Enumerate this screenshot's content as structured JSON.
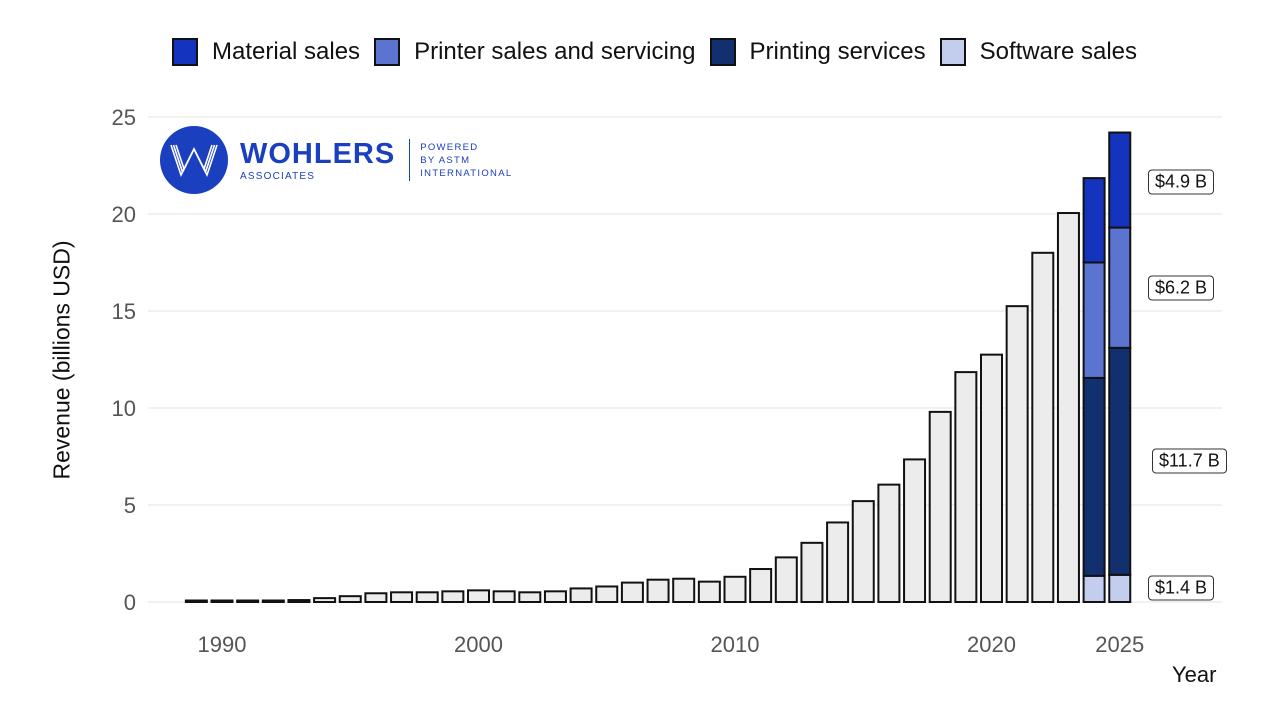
{
  "legend": {
    "items": [
      {
        "label": "Material sales",
        "color": "#1434c0"
      },
      {
        "label": "Printer sales and servicing",
        "color": "#5a74cf"
      },
      {
        "label": "Printing services",
        "color": "#12306e"
      },
      {
        "label": "Software sales",
        "color": "#c3cdee"
      }
    ]
  },
  "logo": {
    "name": "WOHLERS",
    "sub": "ASSOCIATES",
    "powered_line1": "POWERED",
    "powered_line2": "BY ASTM",
    "powered_line3": "INTERNATIONAL"
  },
  "axes": {
    "ylabel": "Revenue (billions USD)",
    "xlabel": "Year",
    "yticks": [
      "0",
      "5",
      "10",
      "15",
      "20",
      "25"
    ],
    "xticks": [
      "1990",
      "2000",
      "2010",
      "2020",
      "2025"
    ]
  },
  "value_labels": [
    {
      "text": "$4.9 B",
      "segment": "Material sales"
    },
    {
      "text": "$6.2 B",
      "segment": "Printer sales and servicing"
    },
    {
      "text": "$11.7 B",
      "segment": "Printing services"
    },
    {
      "text": "$1.4 B",
      "segment": "Software sales"
    }
  ],
  "chart_data": {
    "type": "bar",
    "title": "",
    "xlabel": "Year",
    "ylabel": "Revenue (billions USD)",
    "ylim": [
      0,
      25
    ],
    "grid": true,
    "legend_position": "top",
    "x": [
      1989,
      1990,
      1991,
      1992,
      1993,
      1994,
      1995,
      1996,
      1997,
      1998,
      1999,
      2000,
      2001,
      2002,
      2003,
      2004,
      2005,
      2006,
      2007,
      2008,
      2009,
      2010,
      2011,
      2012,
      2013,
      2014,
      2015,
      2016,
      2017,
      2018,
      2019,
      2020,
      2021,
      2022,
      2023
    ],
    "totals": [
      0.05,
      0.05,
      0.05,
      0.05,
      0.1,
      0.2,
      0.3,
      0.45,
      0.5,
      0.5,
      0.55,
      0.6,
      0.55,
      0.5,
      0.55,
      0.7,
      0.8,
      1.0,
      1.15,
      1.2,
      1.05,
      1.3,
      1.7,
      2.3,
      3.05,
      4.1,
      5.2,
      6.05,
      7.35,
      9.8,
      11.85,
      12.75,
      15.25,
      18.0,
      20.05
    ],
    "stacked": {
      "categories": [
        2024,
        2025
      ],
      "series": [
        {
          "name": "Software sales",
          "values": [
            1.35,
            1.4
          ]
        },
        {
          "name": "Printing services",
          "values": [
            10.2,
            11.7
          ]
        },
        {
          "name": "Printer sales and servicing",
          "values": [
            5.95,
            6.2
          ]
        },
        {
          "name": "Material sales",
          "values": [
            4.35,
            4.9
          ]
        }
      ]
    },
    "annotations": [
      "$4.9 B",
      "$6.2 B",
      "$11.7 B",
      "$1.4 B"
    ],
    "xticks": [
      1990,
      2000,
      2010,
      2020,
      2025
    ],
    "yticks": [
      0,
      5,
      10,
      15,
      20,
      25
    ]
  }
}
